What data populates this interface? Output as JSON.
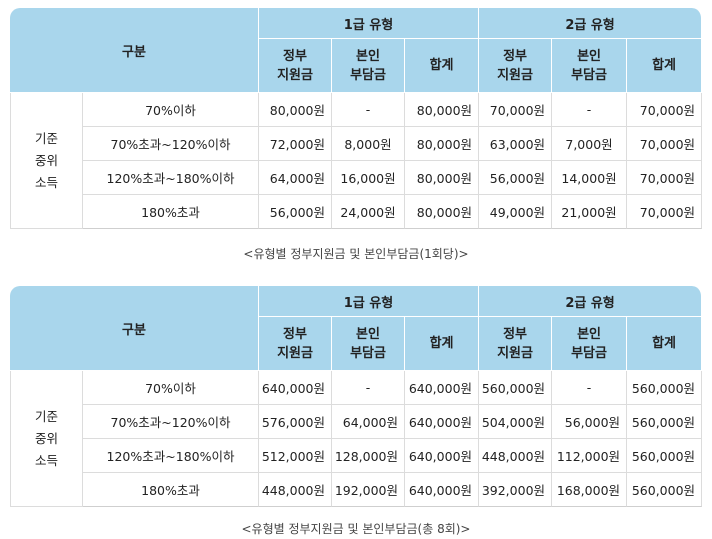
{
  "header": {
    "category": "구분",
    "type1": "1급 유형",
    "type2": "2급 유형",
    "gov": [
      "정부",
      "지원금"
    ],
    "self": [
      "본인",
      "부담금"
    ],
    "total": "합계"
  },
  "group_label": [
    "기준",
    "중위",
    "소득"
  ],
  "tables": [
    {
      "rows": [
        {
          "label": "70%이하",
          "v": [
            "80,000원",
            "-",
            "80,000원",
            "70,000원",
            "-",
            "70,000원"
          ]
        },
        {
          "label": "70%초과~120%이하",
          "v": [
            "72,000원",
            "8,000원",
            "80,000원",
            "63,000원",
            "7,000원",
            "70,000원"
          ]
        },
        {
          "label": "120%초과~180%이하",
          "v": [
            "64,000원",
            "16,000원",
            "80,000원",
            "56,000원",
            "14,000원",
            "70,000원"
          ]
        },
        {
          "label": "180%초과",
          "v": [
            "56,000원",
            "24,000원",
            "80,000원",
            "49,000원",
            "21,000원",
            "70,000원"
          ]
        }
      ],
      "caption": "<유형별 정부지원금 및 본인부담금(1회당)>"
    },
    {
      "rows": [
        {
          "label": "70%이하",
          "v": [
            "640,000원",
            "-",
            "640,000원",
            "560,000원",
            "-",
            "560,000원"
          ]
        },
        {
          "label": "70%초과~120%이하",
          "v": [
            "576,000원",
            "64,000원",
            "640,000원",
            "504,000원",
            "56,000원",
            "560,000원"
          ]
        },
        {
          "label": "120%초과~180%이하",
          "v": [
            "512,000원",
            "128,000원",
            "640,000원",
            "448,000원",
            "112,000원",
            "560,000원"
          ]
        },
        {
          "label": "180%초과",
          "v": [
            "448,000원",
            "192,000원",
            "640,000원",
            "392,000원",
            "168,000원",
            "560,000원"
          ]
        }
      ],
      "caption": "<유형별 정부지원금 및 본인부담금(총 8회)>"
    }
  ],
  "colors": {
    "header_bg": "#a9d6ec",
    "border": "#dcdcdc"
  }
}
